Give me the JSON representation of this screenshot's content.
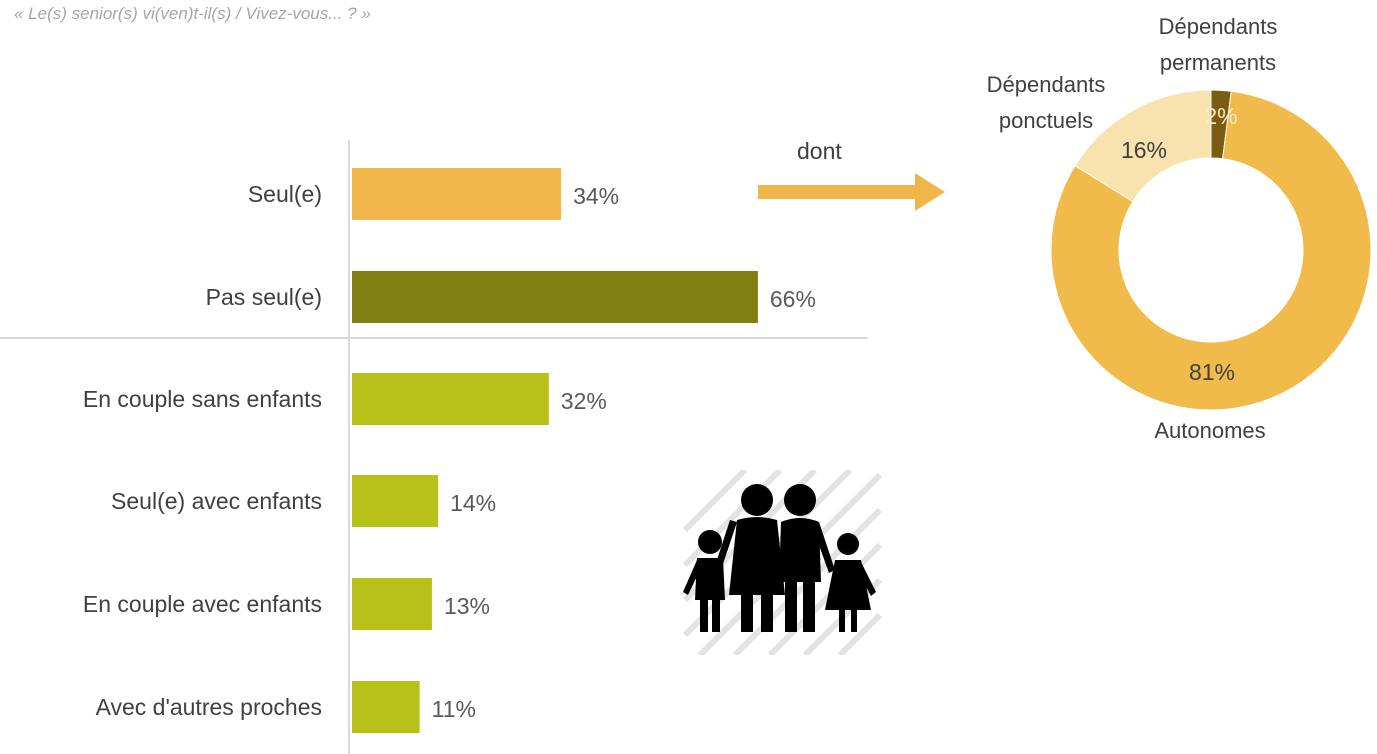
{
  "question": "« Le(s) senior(s) vi(ven)t-il(s) / Vivez-vous... ? »",
  "arrow_label": "dont",
  "colors": {
    "seul": "#f0b64a",
    "pas_seul": "#7f7f12",
    "sub": "#b8c11a",
    "donut_autonomes": "#f0bb4a",
    "donut_ponctuels": "#f8e2ae",
    "donut_permanents": "#7d5b12"
  },
  "chart_data": [
    {
      "type": "bar",
      "orientation": "horizontal",
      "categories": [
        "Seul(e)",
        "Pas seul(e)",
        "En couple sans enfants",
        "Seul(e) avec enfants",
        "En couple avec enfants",
        "Avec d'autres proches"
      ],
      "values": [
        34,
        66,
        32,
        14,
        13,
        11
      ],
      "value_labels": [
        "34%",
        "66%",
        "32%",
        "14%",
        "13%",
        "11%"
      ],
      "unit": "%",
      "xlim": [
        0,
        100
      ],
      "grid": false
    },
    {
      "type": "pie",
      "donut": true,
      "labels": [
        "Autonomes",
        "Dépendants ponctuels",
        "Dépendants permanents"
      ],
      "label_lines": [
        [
          "Autonomes"
        ],
        [
          "Dépendants",
          "ponctuels"
        ],
        [
          "Dépendants",
          "permanents"
        ]
      ],
      "values": [
        81,
        16,
        2
      ],
      "value_labels": [
        "81%",
        "16%",
        "2%"
      ]
    }
  ]
}
